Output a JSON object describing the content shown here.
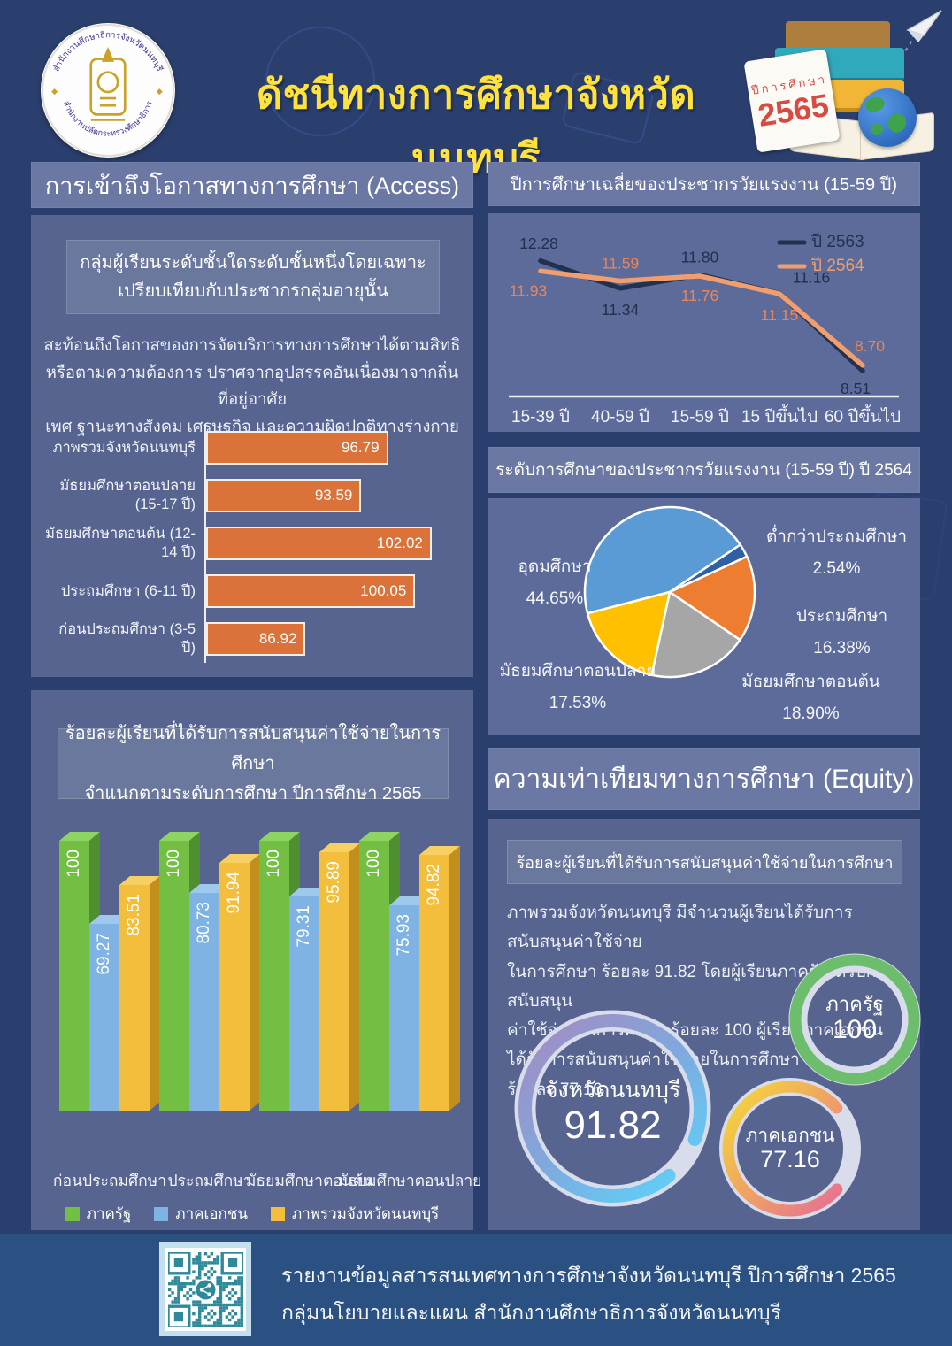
{
  "header": {
    "org_top": "สำนักงานศึกษาธิการจังหวัดนนทบุรี",
    "org_bottom": "สำนักงานปลัดกระทรวงศึกษาธิการ",
    "title": "ดัชนีทางการศึกษาจังหวัดนนทบุรี",
    "year_word": "ปีการศึกษา",
    "year_number": "2565"
  },
  "access": {
    "section_title": "การเข้าถึงโอกาสทางการศึกษา (Access)",
    "definition_line1": "กลุ่มผู้เรียนระดับชั้นใดระดับชั้นหนึ่งโดยเฉพาะ",
    "definition_line2": "เปรียบเทียบกับประชากรกลุ่มอายุนั้น",
    "description_line1": "สะท้อนถึงโอกาสของการจัดบริการทางการศึกษาได้ตามสิทธิ",
    "description_line2": "หรือตามความต้องการ ปราศจากอุปสรรคอันเนื่องมาจากถิ่นที่อยู่อาศัย",
    "description_line3": "เพศ ฐานะทางสังคม เศรษฐกิจ และความผิดปกติทางร่างกาย"
  },
  "support_chart": {
    "title_line1": "ร้อยละผู้เรียนที่ได้รับการสนับสนุนค่าใช้จ่ายในการศึกษา",
    "title_line2": "จำแนกตามระดับการศึกษา ปีการศึกษา 2565"
  },
  "equity": {
    "section_title": "ความเท่าเทียมทางการศึกษา (Equity)",
    "subtitle": "ร้อยละผู้เรียนที่ได้รับการสนับสนุนค่าใช้จ่ายในการศึกษา",
    "paragraph_line1": "ภาพรวมจังหวัดนนทบุรี มีจำนวนผู้เรียนได้รับการสนับสนุนค่าใช้จ่าย",
    "paragraph_line2": "ในการศึกษา ร้อยละ 91.82 โดยผู้เรียนภาครัฐได้รับการสนับสนุน",
    "paragraph_line3": "ค่าใช้จ่ายในการศึกษา ร้อยละ 100 ผู้เรียนภาคเอกชน",
    "paragraph_line4": "ได้รับการสนับสนุนค่าใช้จ่ายในการศึกษา",
    "paragraph_line5": "ร้อยละ 77.16",
    "rings": [
      {
        "label": "ภาครัฐ",
        "value": 100,
        "display": "100",
        "color": "#6CBE6C"
      },
      {
        "label": "จังหวัดนนทบุรี",
        "value": 91.82,
        "display": "91.82",
        "gradient": [
          "#9E8FC5",
          "#7FA9DE",
          "#5FD0F7"
        ]
      },
      {
        "label": "ภาคเอกชน",
        "value": 77.16,
        "display": "77.16",
        "gradient": [
          "#F4D23E",
          "#EFA066",
          "#E66F93"
        ]
      }
    ]
  },
  "footer": {
    "line1": "รายงานข้อมูลสารสนเทศทางการศึกษาจังหวัดนนทบุรี ปีการศึกษา 2565",
    "line2": "กลุ่มนโยบายและแผน  สำนักงานศึกษาธิการจังหวัดนนทบุรี"
  },
  "chart_data": [
    {
      "id": "enrollment-ratio-bar",
      "type": "bar",
      "orientation": "horizontal",
      "categories": [
        "ภาพรวมจังหวัดนนทบุรี",
        "มัธยมศึกษาตอนปลาย\n(15-17 ปี)",
        "มัธยมศึกษาตอนต้น (12-14 ปี)",
        "ประถมศึกษา (6-11 ปี)",
        "ก่อนประถมศึกษา (3-5 ปี)"
      ],
      "values": [
        96.79,
        93.59,
        102.02,
        100.05,
        86.92
      ],
      "bar_color": "#DB7239",
      "xlim": [
        75,
        105
      ],
      "grid": false
    },
    {
      "id": "avg-schooling-years-line",
      "type": "line",
      "title": "ปีการศึกษาเฉลี่ยของประชากรวัยแรงงาน (15-59 ปี)",
      "categories": [
        "15-39 ปี",
        "40-59 ปี",
        "15-59 ปี",
        "15 ปีขึ้นไป",
        "60 ปีขึ้นไป"
      ],
      "series": [
        {
          "name": "ปี 2563",
          "color": "#233150",
          "values": [
            12.28,
            11.34,
            11.8,
            11.16,
            8.51
          ]
        },
        {
          "name": "ปี 2564",
          "color": "#F09E6E",
          "values": [
            11.93,
            11.59,
            11.76,
            11.15,
            8.7
          ]
        }
      ],
      "ylim": [
        8,
        13
      ],
      "legend_position": "top-right",
      "grid": false
    },
    {
      "id": "education-level-pie",
      "type": "pie",
      "title": "ระดับการศึกษาของประชากรวัยแรงงาน (15-59 ปี)  ปี 2564",
      "slices": [
        {
          "label": "อุดมศึกษา",
          "value": 44.65,
          "color": "#5B9BD5"
        },
        {
          "label": "ต่ำกว่าประถมศึกษา",
          "value": 2.54,
          "color": "#2F5FA5"
        },
        {
          "label": "ประถมศึกษา",
          "value": 16.38,
          "color": "#ED7D31"
        },
        {
          "label": "มัธยมศึกษาตอนต้น",
          "value": 18.9,
          "color": "#A6A6A6"
        },
        {
          "label": "มัธยมศึกษาตอนปลาย",
          "value": 17.53,
          "color": "#FFC000"
        }
      ],
      "start_angle_from_top_deg": 255.4
    },
    {
      "id": "support-by-level-bar3d",
      "type": "bar",
      "style": "3d-grouped",
      "categories": [
        "ก่อนประถมศึกษา",
        "ประถมศึกษา",
        "มัธยมศึกษาตอนต้น",
        "มัธยมศึกษาตอนปลาย"
      ],
      "series": [
        {
          "name": "ภาครัฐ",
          "color": "#72BF44",
          "side": "#4F8F2F",
          "top": "#8ED463",
          "values": [
            100,
            100,
            100,
            100
          ]
        },
        {
          "name": "ภาคเอกชน",
          "color": "#7EB3E3",
          "side": "#557FB3",
          "top": "#9FC8ED",
          "values": [
            69.27,
            80.73,
            79.31,
            75.93
          ]
        },
        {
          "name": "ภาพรวมจังหวัดนนทบุรี",
          "color": "#F3BE3B",
          "side": "#C28F1C",
          "top": "#F7D064",
          "values": [
            83.51,
            91.94,
            95.89,
            94.82
          ]
        }
      ],
      "ylim": [
        0,
        100
      ]
    }
  ]
}
